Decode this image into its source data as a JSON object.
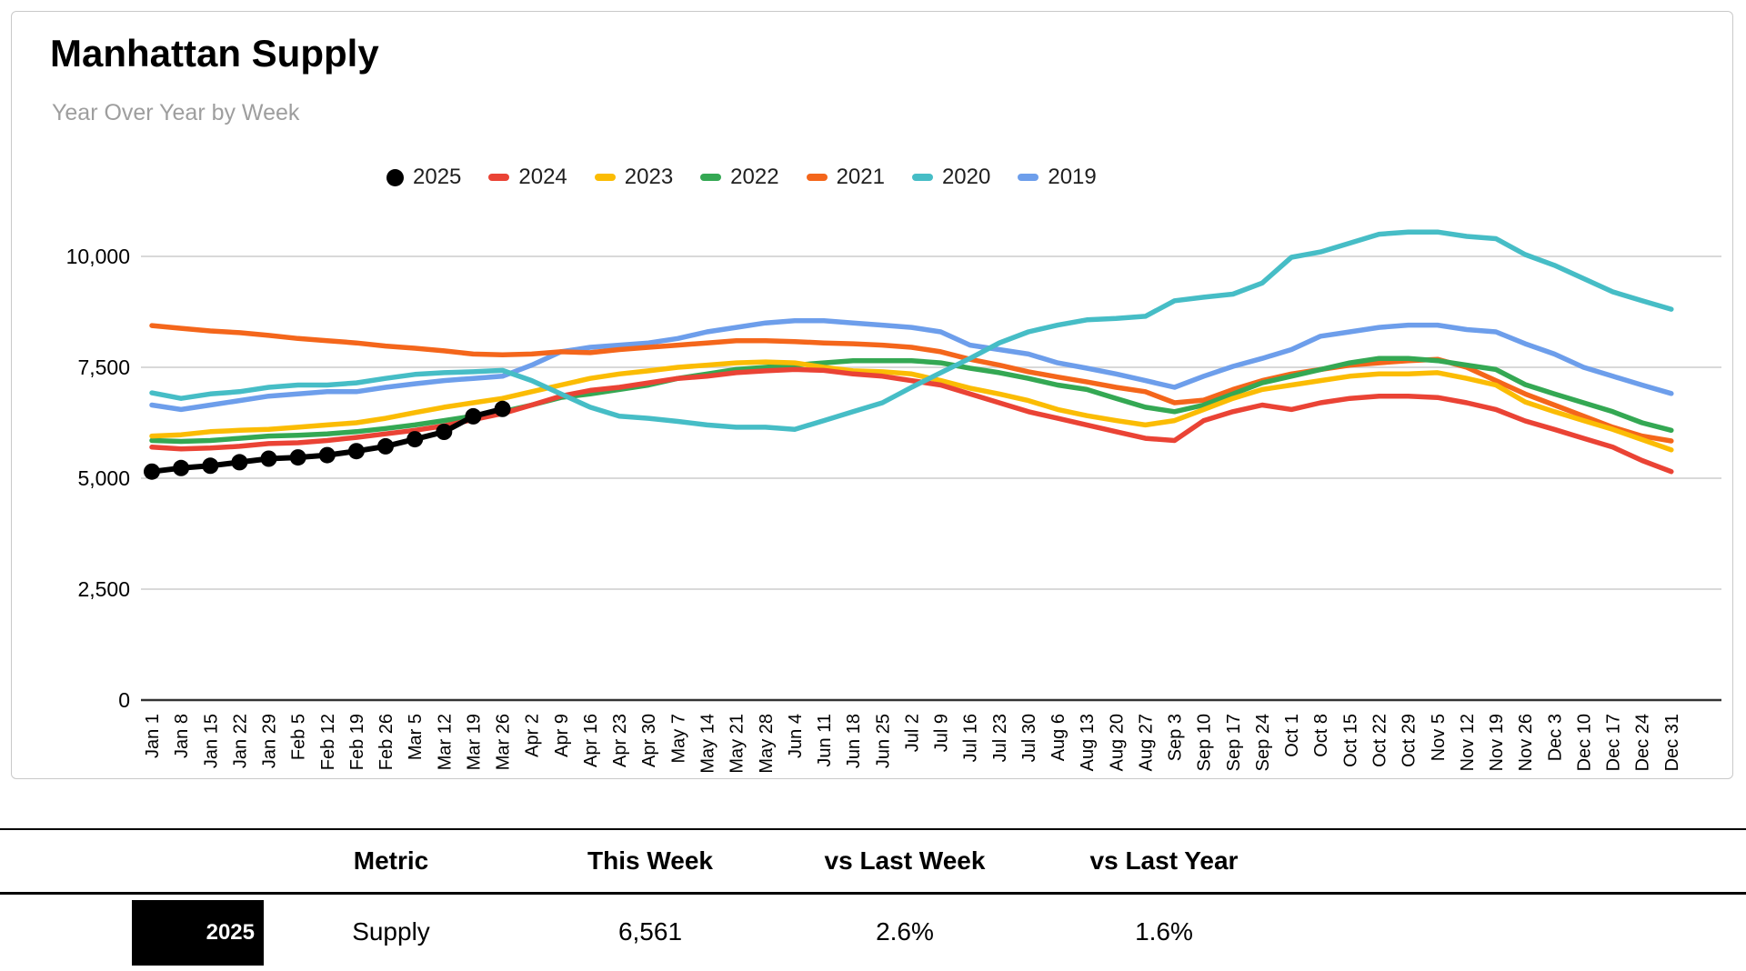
{
  "title": "Manhattan Supply",
  "subtitle": "Year Over Year by Week",
  "legend": [
    {
      "label": "2025",
      "color": "#000000",
      "marker": "circle"
    },
    {
      "label": "2024",
      "color": "#EA4335",
      "marker": "dash"
    },
    {
      "label": "2023",
      "color": "#FBBC04",
      "marker": "dash"
    },
    {
      "label": "2022",
      "color": "#34A853",
      "marker": "dash"
    },
    {
      "label": "2021",
      "color": "#F4661B",
      "marker": "dash"
    },
    {
      "label": "2020",
      "color": "#46BDC6",
      "marker": "dash"
    },
    {
      "label": "2019",
      "color": "#6D9EEB",
      "marker": "dash"
    }
  ],
  "chart_data": {
    "type": "line",
    "title": "Manhattan Supply",
    "subtitle": "Year Over Year by Week",
    "grid": true,
    "legend_position": "top",
    "ylim": [
      0,
      11000
    ],
    "y_ticks": [
      {
        "value": 0,
        "label": "0"
      },
      {
        "value": 2500,
        "label": "2,500"
      },
      {
        "value": 5000,
        "label": "5,000"
      },
      {
        "value": 7500,
        "label": "7,500"
      },
      {
        "value": 10000,
        "label": "10,000"
      }
    ],
    "x_labels": [
      "Jan 1",
      "Jan 8",
      "Jan 15",
      "Jan 22",
      "Jan 29",
      "Feb 5",
      "Feb 12",
      "Feb 19",
      "Feb 26",
      "Mar 5",
      "Mar 12",
      "Mar 19",
      "Mar 26",
      "Apr 2",
      "Apr 9",
      "Apr 16",
      "Apr 23",
      "Apr 30",
      "May 7",
      "May 14",
      "May 21",
      "May 28",
      "Jun 4",
      "Jun 11",
      "Jun 18",
      "Jun 25",
      "Jul 2",
      "Jul 9",
      "Jul 16",
      "Jul 23",
      "Jul 30",
      "Aug 6",
      "Aug 13",
      "Aug 20",
      "Aug 27",
      "Sep 3",
      "Sep 10",
      "Sep 17",
      "Sep 24",
      "Oct 1",
      "Oct 8",
      "Oct 15",
      "Oct 22",
      "Oct 29",
      "Nov 5",
      "Nov 12",
      "Nov 19",
      "Nov 26",
      "Dec 3",
      "Dec 10",
      "Dec 17",
      "Dec 24",
      "Dec 31"
    ],
    "series": [
      {
        "name": "2019",
        "color": "#6D9EEB",
        "values": [
          6650,
          6550,
          6650,
          6750,
          6850,
          6900,
          6950,
          6950,
          7050,
          7130,
          7200,
          7250,
          7300,
          7550,
          7850,
          7950,
          8000,
          8050,
          8150,
          8300,
          8400,
          8500,
          8550,
          8550,
          8500,
          8450,
          8400,
          8300,
          8000,
          7900,
          7800,
          7600,
          7480,
          7350,
          7200,
          7050,
          7300,
          7520,
          7700,
          7900,
          8200,
          8300,
          8400,
          8450,
          8450,
          8350,
          8300,
          8030,
          7800,
          7500,
          7300,
          7100,
          6910
        ]
      },
      {
        "name": "2021",
        "color": "#F4661B",
        "values": [
          8440,
          8380,
          8320,
          8280,
          8220,
          8150,
          8100,
          8050,
          7980,
          7930,
          7870,
          7800,
          7780,
          7800,
          7850,
          7830,
          7900,
          7950,
          8000,
          8050,
          8100,
          8100,
          8080,
          8050,
          8030,
          8000,
          7950,
          7850,
          7680,
          7550,
          7400,
          7280,
          7170,
          7050,
          6950,
          6700,
          6760,
          7000,
          7200,
          7350,
          7450,
          7550,
          7600,
          7650,
          7680,
          7500,
          7200,
          6900,
          6650,
          6400,
          6150,
          5950,
          5840
        ]
      },
      {
        "name": "2022",
        "color": "#34A853",
        "values": [
          5850,
          5830,
          5850,
          5900,
          5950,
          5970,
          6000,
          6050,
          6120,
          6200,
          6300,
          6400,
          6500,
          6650,
          6820,
          6900,
          7000,
          7100,
          7250,
          7350,
          7450,
          7500,
          7550,
          7600,
          7650,
          7650,
          7650,
          7600,
          7480,
          7380,
          7250,
          7100,
          7000,
          6800,
          6600,
          6500,
          6650,
          6900,
          7150,
          7300,
          7450,
          7600,
          7700,
          7700,
          7650,
          7550,
          7450,
          7110,
          6900,
          6700,
          6500,
          6250,
          6080
        ]
      },
      {
        "name": "2023",
        "color": "#FBBC04",
        "values": [
          5950,
          5980,
          6050,
          6080,
          6100,
          6150,
          6200,
          6250,
          6350,
          6480,
          6600,
          6700,
          6800,
          6950,
          7100,
          7250,
          7350,
          7420,
          7500,
          7550,
          7600,
          7620,
          7600,
          7500,
          7420,
          7400,
          7350,
          7200,
          7030,
          6900,
          6750,
          6550,
          6410,
          6300,
          6200,
          6300,
          6550,
          6800,
          7000,
          7100,
          7200,
          7300,
          7350,
          7350,
          7380,
          7250,
          7100,
          6720,
          6500,
          6300,
          6100,
          5870,
          5640
        ]
      },
      {
        "name": "2024",
        "color": "#EA4335",
        "values": [
          5700,
          5660,
          5680,
          5720,
          5780,
          5800,
          5850,
          5920,
          6000,
          6080,
          6180,
          6320,
          6458,
          6650,
          6850,
          6980,
          7050,
          7150,
          7250,
          7300,
          7380,
          7420,
          7450,
          7430,
          7350,
          7300,
          7200,
          7100,
          6900,
          6700,
          6500,
          6350,
          6200,
          6050,
          5900,
          5850,
          6300,
          6500,
          6650,
          6550,
          6700,
          6800,
          6850,
          6850,
          6820,
          6700,
          6550,
          6290,
          6100,
          5900,
          5700,
          5400,
          5150
        ]
      },
      {
        "name": "2020",
        "color": "#46BDC6",
        "values": [
          6925,
          6800,
          6900,
          6950,
          7050,
          7100,
          7100,
          7150,
          7250,
          7340,
          7380,
          7400,
          7430,
          7200,
          6900,
          6600,
          6400,
          6350,
          6280,
          6200,
          6150,
          6150,
          6100,
          6300,
          6500,
          6700,
          7050,
          7380,
          7700,
          8050,
          8300,
          8450,
          8570,
          8600,
          8650,
          9000,
          9080,
          9150,
          9400,
          9980,
          10100,
          10300,
          10500,
          10550,
          10550,
          10450,
          10400,
          10040,
          9800,
          9500,
          9200,
          9000,
          8810
        ]
      },
      {
        "name": "2025",
        "color": "#000000",
        "marker": true,
        "values": [
          5150,
          5230,
          5280,
          5360,
          5440,
          5470,
          5520,
          5610,
          5720,
          5880,
          6045,
          6395,
          6561
        ]
      }
    ]
  },
  "table": {
    "columns": [
      "Metric",
      "This Week",
      "vs Last Week",
      "vs Last Year"
    ],
    "rows": [
      {
        "year": "2025",
        "metric": "Supply",
        "this_week": "6,561",
        "vs_last_week": "2.6%",
        "vs_last_year": "1.6%"
      }
    ]
  }
}
